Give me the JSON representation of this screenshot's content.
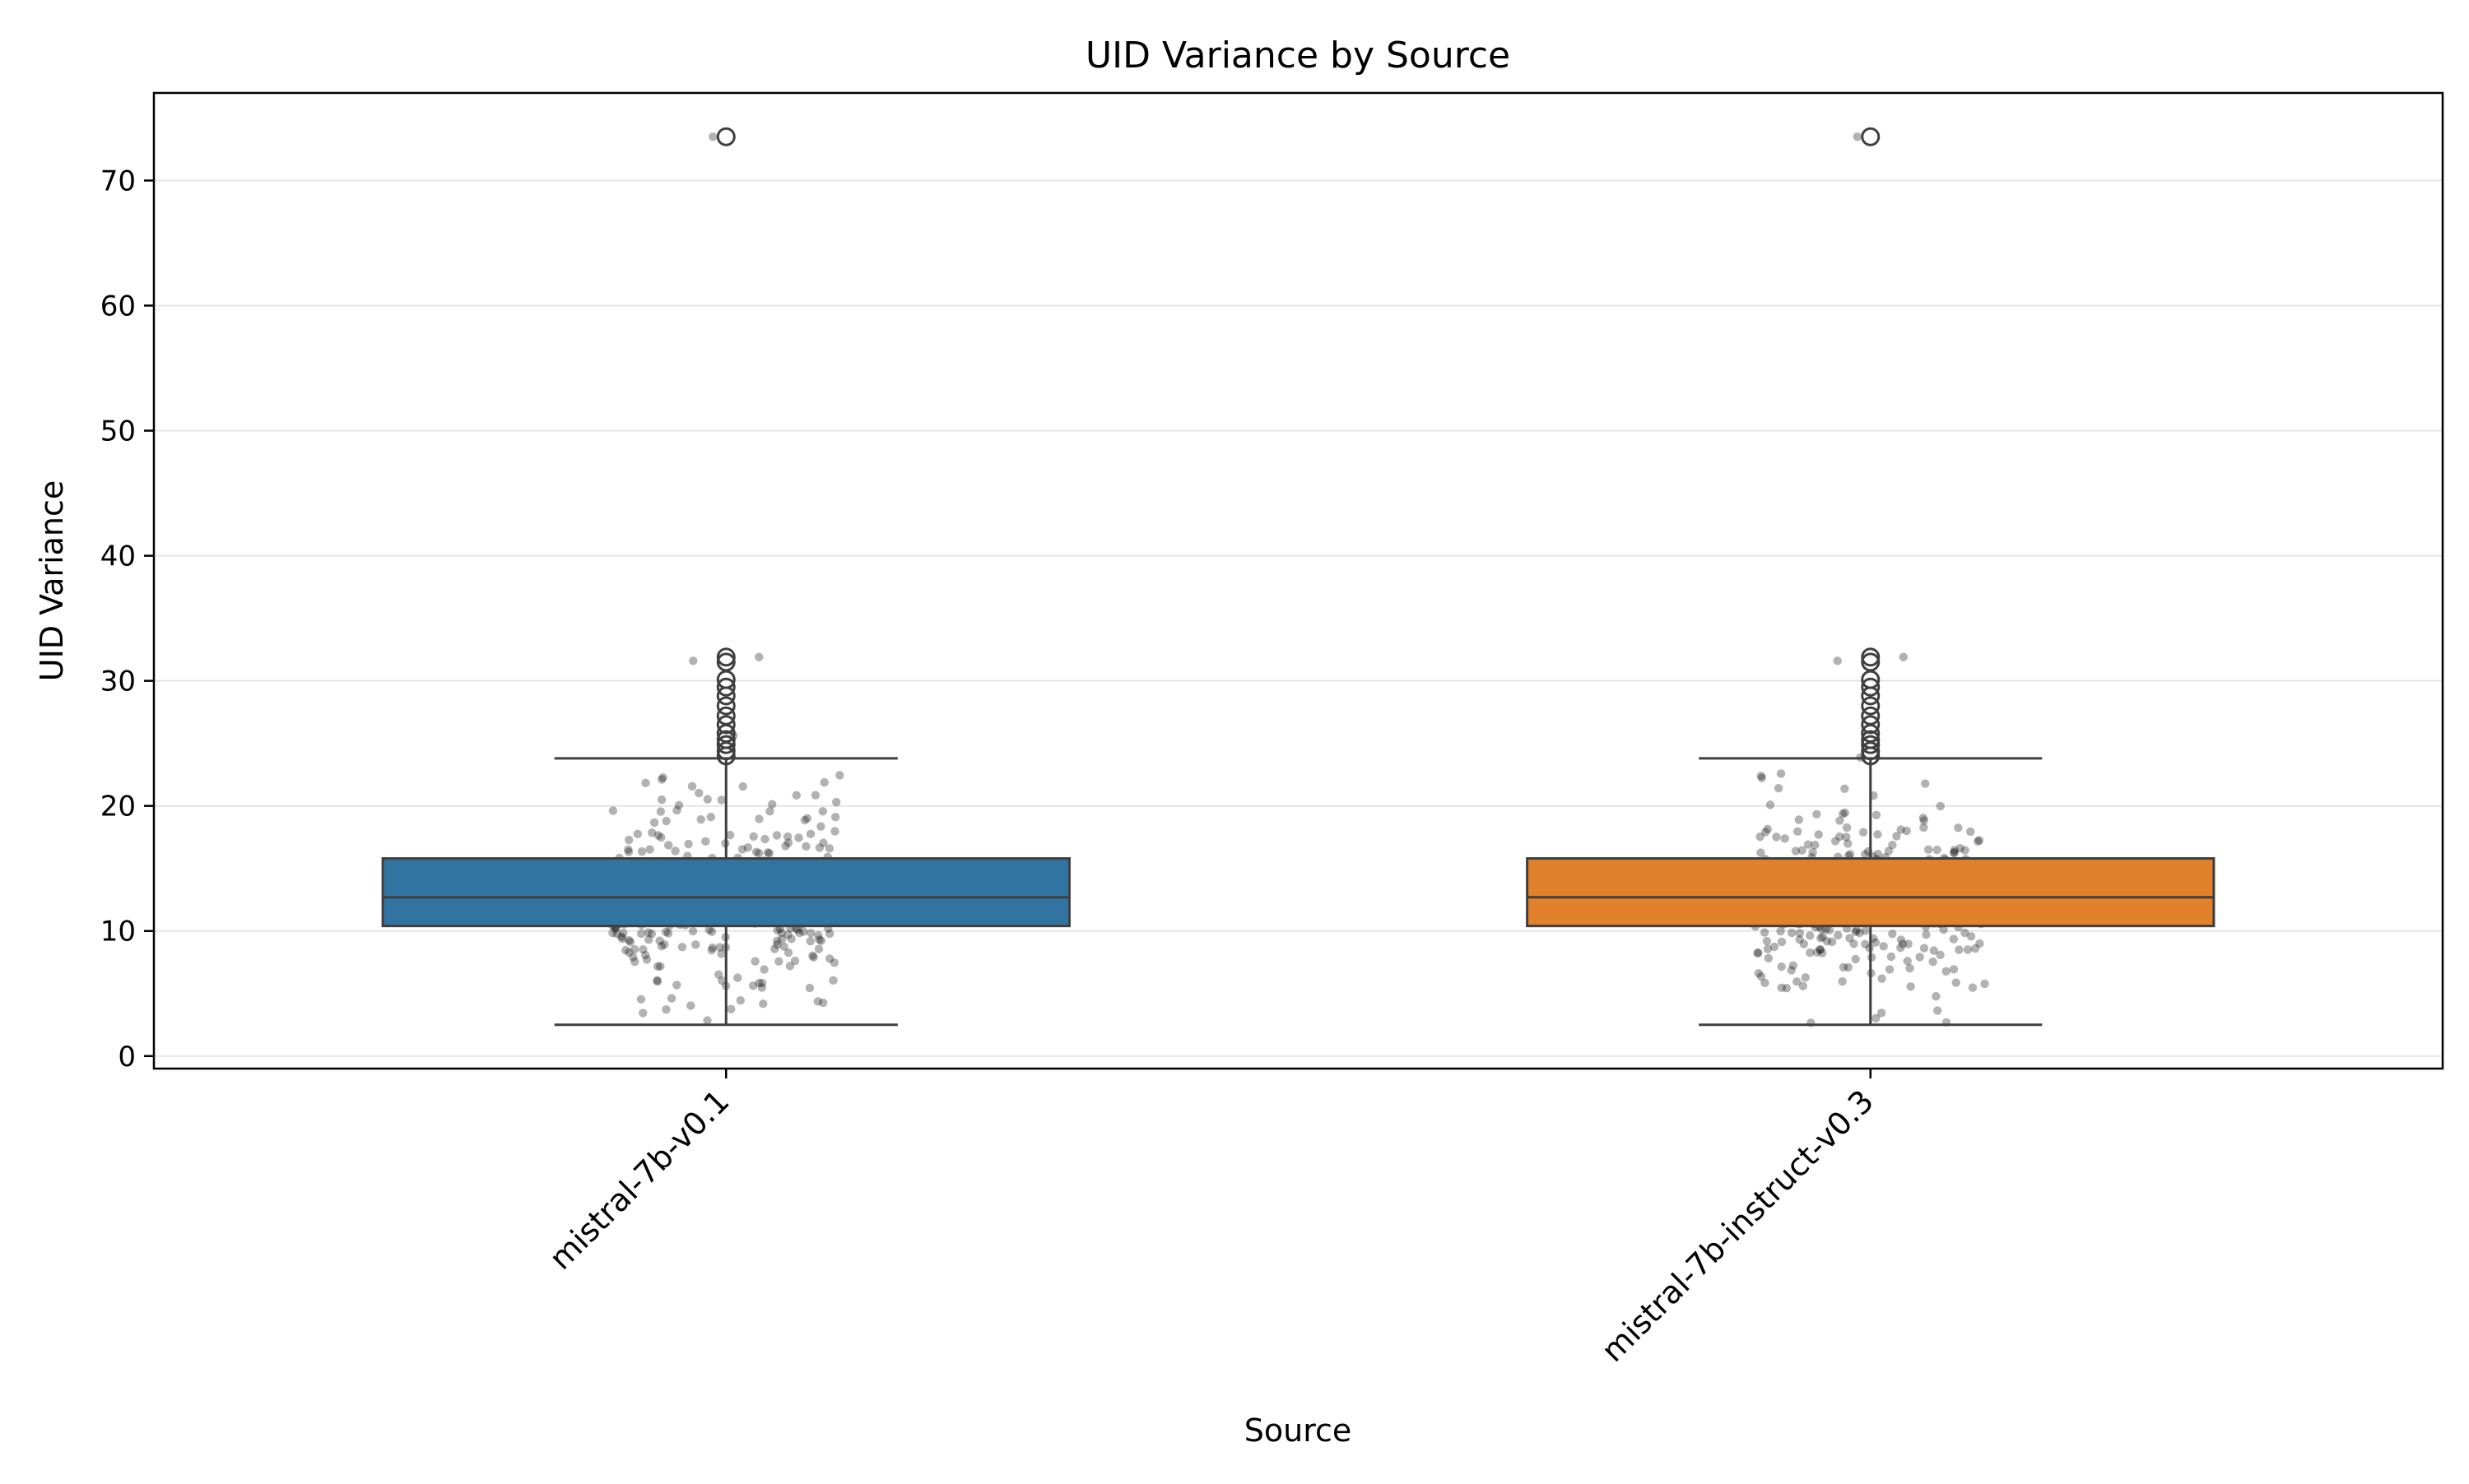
{
  "chart_data": {
    "type": "box",
    "title": "UID Variance by Source",
    "xlabel": "Source",
    "ylabel": "UID Variance",
    "categories": [
      "mistral-7b-v0.1",
      "mistral-7b-instruct-v0.3"
    ],
    "ylim": [
      -1,
      77
    ],
    "yticks": [
      0,
      10,
      20,
      30,
      40,
      50,
      60,
      70
    ],
    "grid": "horizontal",
    "colors": {
      "box_0": "#3274a1",
      "box_1": "#e1812c",
      "line": "#3f3f3f",
      "grid": "#e5e5e5",
      "strip": "#000000"
    },
    "boxes": [
      {
        "name": "mistral-7b-v0.1",
        "whisker_low": 2.5,
        "q1": 10.4,
        "median": 12.7,
        "q3": 15.8,
        "whisker_high": 23.8,
        "outliers": [
          24.0,
          24.4,
          24.9,
          25.3,
          25.8,
          26.5,
          27.2,
          28.0,
          28.8,
          29.5,
          30.1,
          31.5,
          31.9,
          73.5
        ]
      },
      {
        "name": "mistral-7b-instruct-v0.3",
        "whisker_low": 2.5,
        "q1": 10.4,
        "median": 12.7,
        "q3": 15.8,
        "whisker_high": 23.8,
        "outliers": [
          24.0,
          24.4,
          24.9,
          25.3,
          25.8,
          26.5,
          27.2,
          28.0,
          28.8,
          29.5,
          30.1,
          31.5,
          31.9,
          73.5
        ]
      }
    ]
  }
}
